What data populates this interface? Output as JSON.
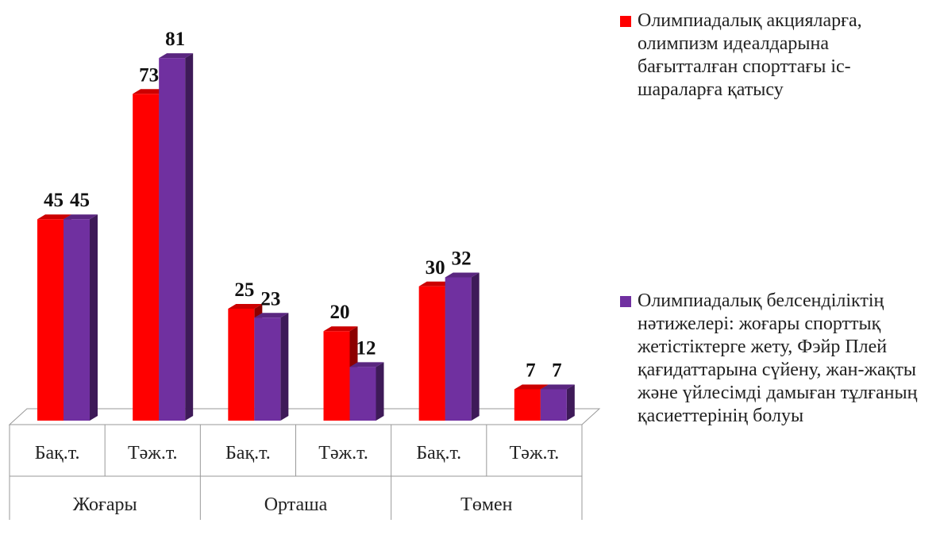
{
  "chart_data": {
    "type": "bar3d",
    "categories": [
      "Бақ.т.",
      "Тәж.т.",
      "Бақ.т.",
      "Тәж.т.",
      "Бақ.т.",
      "Тәж.т."
    ],
    "groups": [
      "Жоғары",
      "Орташа",
      "Төмен"
    ],
    "series": [
      {
        "name": "Олимпиадалық акцияларға, олимпизм идеалдарына бағытталған спорттағы іс-шараларға  қатысу",
        "color": "#ff0000",
        "values": [
          45,
          73,
          25,
          20,
          30,
          7
        ]
      },
      {
        "name": "Олимпиадалық белсенділіктің нәтижелері: жоғары спорттық жетістіктерге жету, Фэйр Плей қағидаттарына сүйену,  жан-жақты және үйлесімді дамыған тұлғаның қасиеттерінің болуы",
        "color": "#7030a0",
        "values": [
          45,
          81,
          23,
          12,
          32,
          7
        ]
      }
    ],
    "legend": "right"
  }
}
